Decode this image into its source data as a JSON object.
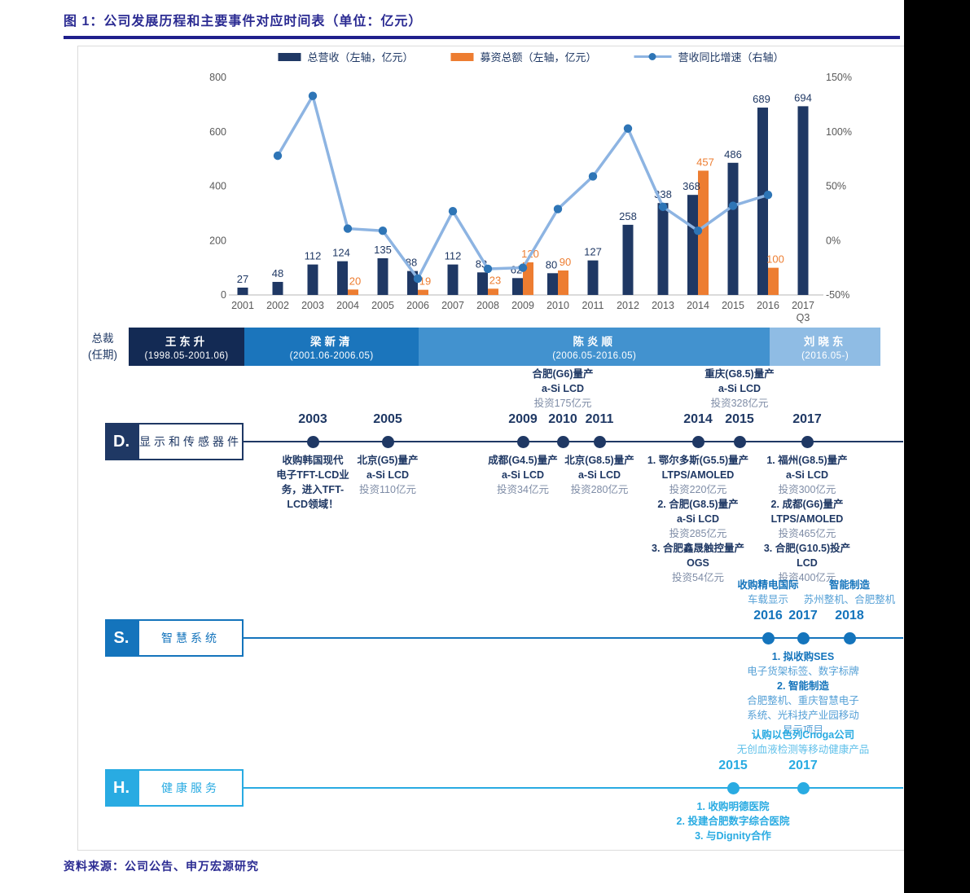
{
  "title": "图 1：公司发展历程和主要事件对应时间表（单位：亿元）",
  "source": "资料来源：公司公告、申万宏源研究",
  "colors": {
    "title_blue": "#2b2b92",
    "bar_navy": "#1f3864",
    "bar_orange": "#ed7d31",
    "line_light_blue": "#8db4e2",
    "line_marker_blue": "#2e75b6",
    "axis_gray": "#595959",
    "d_row_navy": "#1f3864",
    "s_row_blue": "#1474bc",
    "h_row_cyan": "#29abe2"
  },
  "legend": {
    "items": [
      {
        "swatch": "bar",
        "color": "#1f3864",
        "label": "总营收（左轴，亿元）"
      },
      {
        "swatch": "bar",
        "color": "#ed7d31",
        "label": "募资总额（左轴，亿元）"
      },
      {
        "swatch": "line",
        "color": "#8db4e2",
        "dot_color": "#2e75b6",
        "label": "营收同比增速（右轴）"
      }
    ]
  },
  "chart_data": {
    "type": "bar+line",
    "categories": [
      "2001",
      "2002",
      "2003",
      "2004",
      "2005",
      "2006",
      "2007",
      "2008",
      "2009",
      "2010",
      "2011",
      "2012",
      "2013",
      "2014",
      "2015",
      "2016",
      "2017"
    ],
    "x_note": {
      "index": 16,
      "text": "Q3"
    },
    "series": [
      {
        "name": "总营收（左轴，亿元）",
        "type": "bar",
        "color": "#1f3864",
        "values": [
          27,
          48,
          112,
          124,
          135,
          88,
          112,
          83,
          62,
          80,
          127,
          258,
          338,
          368,
          486,
          689,
          694
        ]
      },
      {
        "name": "募资总额（左轴，亿元）",
        "type": "bar",
        "color": "#ed7d31",
        "values": [
          null,
          null,
          null,
          20,
          null,
          19,
          null,
          23,
          120,
          90,
          null,
          null,
          null,
          457,
          null,
          100,
          null
        ]
      },
      {
        "name": "营收同比增速（右轴）",
        "type": "line",
        "color": "#8db4e2",
        "marker_color": "#2e75b6",
        "unit": "%",
        "values": [
          null,
          78,
          133,
          11,
          9,
          -35,
          27,
          -26,
          -25,
          29,
          59,
          103,
          31,
          9,
          32,
          42,
          null
        ]
      }
    ],
    "left_axis": {
      "ticks": [
        800,
        600,
        400,
        200,
        0
      ],
      "range": [
        0,
        800
      ]
    },
    "right_axis": {
      "ticks": [
        150,
        100,
        50,
        0,
        -50
      ],
      "unit": "%",
      "range": [
        -50,
        150
      ]
    },
    "grid": false,
    "legend_position": "top"
  },
  "presidents": {
    "label_line1": "总裁",
    "label_line2": "(任期)",
    "terms": [
      {
        "name": "王东升",
        "term": "(1998.05-2001.06)",
        "color": "#132a54",
        "width_pct": 15.4
      },
      {
        "name": "梁新清",
        "term": "(2001.06-2006.05)",
        "color": "#1b75bc",
        "width_pct": 23.2
      },
      {
        "name": "陈炎顺",
        "term": "(2006.05-2016.05)",
        "color": "#4292cf",
        "width_pct": 46.7
      },
      {
        "name": "刘晓东",
        "term": "(2016.05-)",
        "color": "#8fbce4",
        "width_pct": 14.7
      }
    ]
  },
  "sections": [
    {
      "id": "D",
      "badge": "D.",
      "label": "显示和传感器件",
      "color": "#1f3864",
      "light": "#7e8ca6",
      "events": [
        {
          "year": 2003,
          "side": "below",
          "lines": [
            [
              "收购韩国现代",
              1
            ],
            [
              "电子TFT-LCD业",
              1
            ],
            [
              "务，进入TFT-",
              1
            ],
            [
              "LCD领域！",
              1
            ]
          ]
        },
        {
          "year": 2005,
          "side": "below",
          "dx": 6,
          "lines": [
            [
              "北京(G5)量产",
              1
            ],
            [
              "a-Si LCD",
              1
            ],
            [
              "投资110亿元",
              0
            ]
          ]
        },
        {
          "year": 2009,
          "side": "below",
          "lines": [
            [
              "成都(G4.5)量产",
              1
            ],
            [
              "a-Si LCD",
              1
            ],
            [
              "投资34亿元",
              0
            ]
          ]
        },
        {
          "year": 2010,
          "side": "above",
          "dx": 6,
          "lines": [
            [
              "合肥(G6)量产",
              1
            ],
            [
              "a-Si LCD",
              1
            ],
            [
              "投资175亿元",
              0
            ]
          ]
        },
        {
          "year": 2011,
          "side": "below",
          "dx": 8,
          "lines": [
            [
              "北京(G8.5)量产",
              1
            ],
            [
              "a-Si LCD",
              1
            ],
            [
              "投资280亿元",
              0
            ]
          ]
        },
        {
          "year": 2014,
          "side": "below",
          "lines": [
            [
              "1. 鄂尔多斯(G5.5)量产",
              1
            ],
            [
              "LTPS/AMOLED",
              1
            ],
            [
              "投资220亿元",
              0
            ],
            [
              "2. 合肥(G8.5)量产",
              1
            ],
            [
              "a-Si LCD",
              1
            ],
            [
              "投资285亿元",
              0
            ],
            [
              "3. 合肥鑫晟触控量产",
              1
            ],
            [
              "OGS",
              1
            ],
            [
              "投资54亿元",
              0
            ]
          ]
        },
        {
          "year": 2015,
          "side": "above",
          "dx": 8,
          "lines": [
            [
              "重庆(G8.5)量产",
              1
            ],
            [
              "a-Si LCD",
              1
            ],
            [
              "投资328亿元",
              0
            ]
          ]
        },
        {
          "year": 2017,
          "side": "below",
          "dx": 5,
          "lines": [
            [
              "1. 福州(G8.5)量产",
              1
            ],
            [
              "a-Si LCD",
              1
            ],
            [
              "投资300亿元",
              0
            ],
            [
              "2. 成都(G6)量产",
              1
            ],
            [
              "LTPS/AMOLED",
              1
            ],
            [
              "投资465亿元",
              0
            ],
            [
              "3. 合肥(G10.5)投产",
              1
            ],
            [
              "LCD",
              1
            ],
            [
              "投资400亿元",
              0
            ]
          ]
        }
      ]
    },
    {
      "id": "S",
      "badge": "S.",
      "label": "智慧系统",
      "color": "#1474bc",
      "light": "#55a0d6",
      "events": [
        {
          "year": 2016,
          "side": "above",
          "lines": [
            [
              "收购精电国际",
              1
            ],
            [
              "车载显示",
              0
            ]
          ]
        },
        {
          "year": 2017,
          "side": "below",
          "lines": [
            [
              "1. 拟收购SES",
              1
            ],
            [
              "电子货架标签、数字标牌",
              0
            ],
            [
              "2. 智能制造",
              1
            ],
            [
              "合肥整机、重庆智慧电子",
              0
            ],
            [
              "系统、光科技产业园移动",
              0
            ],
            [
              "显示项目",
              0
            ]
          ]
        },
        {
          "year": 2018,
          "side": "above",
          "dx": 14,
          "lines": [
            [
              "智能制造",
              1
            ],
            [
              "苏州整机、合肥整机",
              0
            ]
          ]
        }
      ]
    },
    {
      "id": "H",
      "badge": "H.",
      "label": "健康服务",
      "color": "#29abe2",
      "light": "#5fc0ea",
      "events": [
        {
          "year": 2015,
          "side": "below",
          "lines": [
            [
              "1. 收购明德医院",
              1
            ],
            [
              "2. 投建合肥数字综合医院",
              1
            ],
            [
              "3. 与Dignity合作",
              1
            ]
          ]
        },
        {
          "year": 2017,
          "side": "above",
          "lines": [
            [
              "认购以色列Cnoga公司",
              1
            ],
            [
              "无创血液检测等移动健康产品",
              0
            ]
          ]
        }
      ]
    }
  ]
}
